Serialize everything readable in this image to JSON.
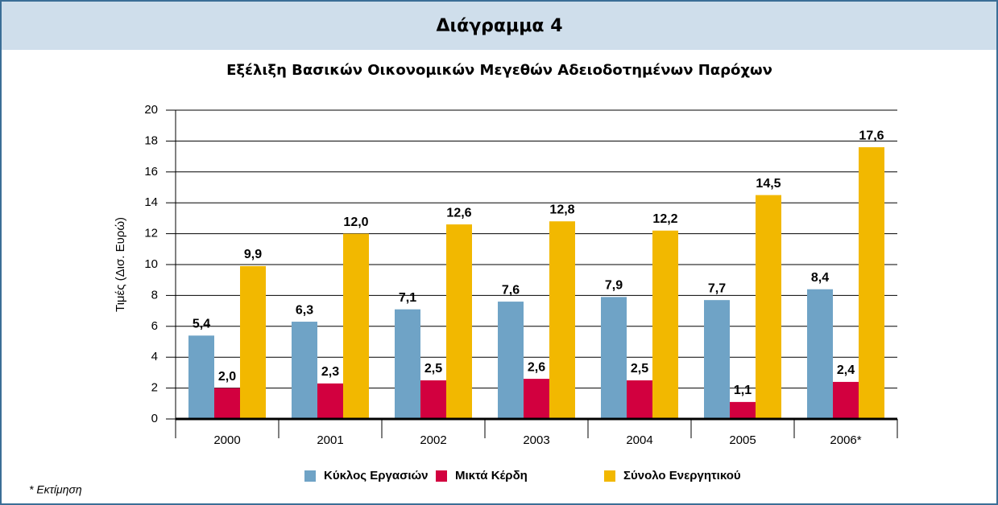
{
  "header": "Διάγραμμα 4",
  "footnote": "* Εκτίμηση",
  "chart_data": {
    "type": "bar",
    "title": "Εξέλιξη Βασικών Οικονομικών Μεγεθών Αδειοδοτημένων Παρόχων",
    "y_label": "Τιμές (Δισ. Ευρώ)",
    "categories": [
      "2000",
      "2001",
      "2002",
      "2003",
      "2004",
      "2005",
      "2006*"
    ],
    "series": [
      {
        "name": "Κύκλος Εργασιών",
        "color": "#6fa3c6",
        "values": [
          5.4,
          6.3,
          7.1,
          7.6,
          7.9,
          7.7,
          8.4
        ],
        "value_labels": [
          "5,4",
          "6,3",
          "7,1",
          "7,6",
          "7,9",
          "7,7",
          "8,4"
        ]
      },
      {
        "name": "Μικτά Κέρδη",
        "color": "#d2003f",
        "values": [
          2.0,
          2.3,
          2.5,
          2.6,
          2.5,
          1.1,
          2.4
        ],
        "value_labels": [
          "2,0",
          "2,3",
          "2,5",
          "2,6",
          "2,5",
          "1,1",
          "2,4"
        ]
      },
      {
        "name": "Σύνολο Ενεργητικού",
        "color": "#f2b800",
        "values": [
          9.9,
          12.0,
          12.6,
          12.8,
          12.2,
          14.5,
          17.6
        ],
        "value_labels": [
          "9,9",
          "12,0",
          "12,6",
          "12,8",
          "12,2",
          "14,5",
          "17,6"
        ]
      }
    ],
    "ylim": [
      0,
      20
    ],
    "yticks": [
      0,
      2,
      4,
      6,
      8,
      10,
      12,
      14,
      16,
      18,
      20
    ],
    "grid": true,
    "legend": "bottom"
  }
}
